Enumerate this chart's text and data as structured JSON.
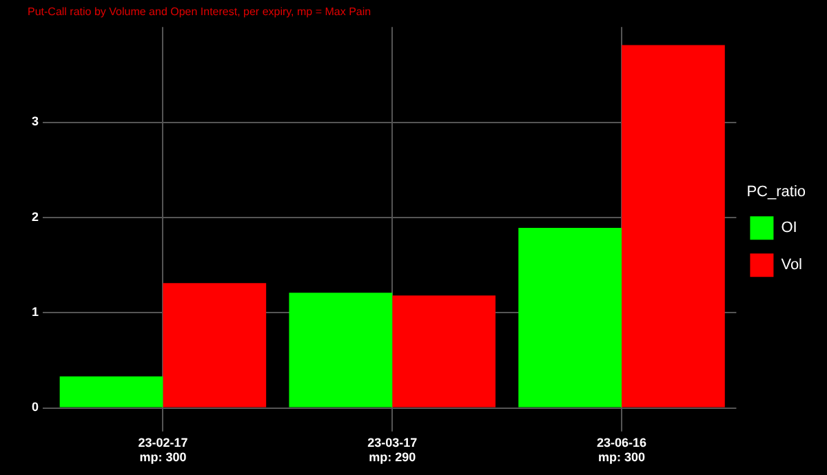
{
  "chart_data": {
    "type": "bar",
    "subtitle": "Put-Call ratio by Volume and Open Interest, per expiry, mp = Max Pain",
    "categories": [
      "23-02-17\nmp: 300",
      "23-03-17\nmp: 290",
      "23-06-16\nmp: 300"
    ],
    "legend_title": "PC_ratio",
    "series": [
      {
        "name": "OI",
        "color": "#00ff00",
        "values": [
          0.33,
          1.21,
          1.89
        ]
      },
      {
        "name": "Vol",
        "color": "#ff0000",
        "values": [
          1.31,
          1.18,
          3.81
        ]
      }
    ],
    "ylim": [
      -0.19,
      4.0
    ],
    "yticks": [
      0,
      1,
      2,
      3
    ],
    "grid": true,
    "legend": "right"
  }
}
